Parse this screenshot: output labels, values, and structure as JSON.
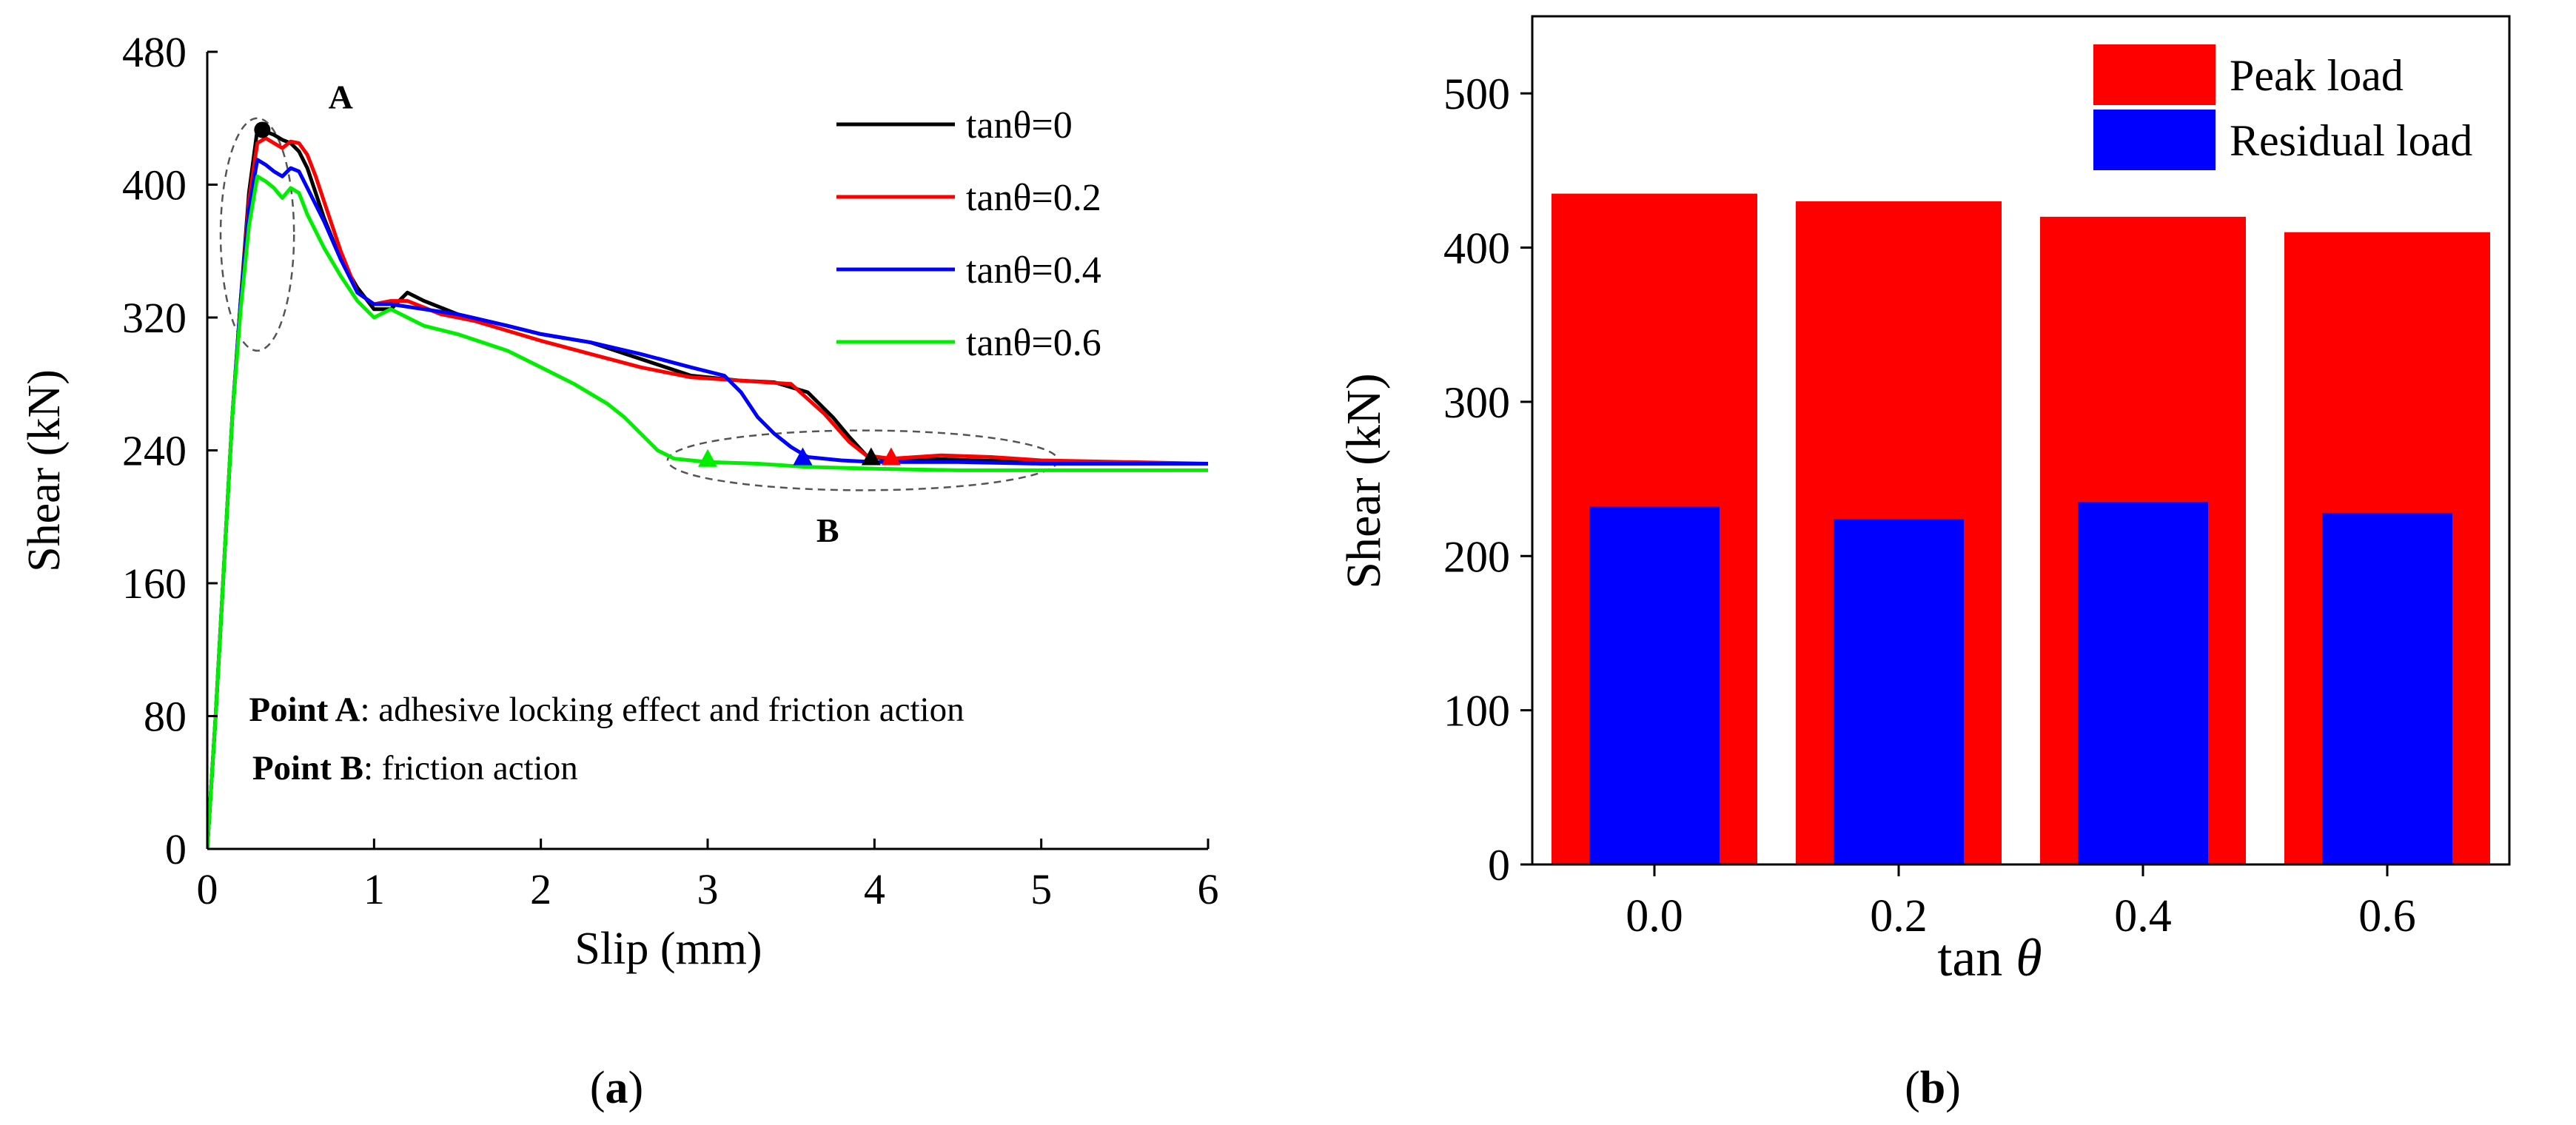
{
  "chart_data": [
    {
      "panel": "(a)",
      "panel_letter": "a",
      "type": "line",
      "xlabel": "Slip (mm)",
      "ylabel": "Shear (kN)",
      "xlim": [
        0,
        6
      ],
      "ylim": [
        0,
        480
      ],
      "xticks": [
        "0",
        "1",
        "2",
        "3",
        "4",
        "5",
        "6"
      ],
      "yticks": [
        "0",
        "80",
        "160",
        "240",
        "320",
        "400",
        "480"
      ],
      "legend_position": "top-right",
      "series": [
        {
          "name": "tanθ=0",
          "color": "#000000",
          "x": [
            0,
            0.05,
            0.1,
            0.15,
            0.2,
            0.25,
            0.3,
            0.35,
            0.4,
            0.45,
            0.5,
            0.55,
            0.6,
            0.65,
            0.7,
            0.8,
            0.9,
            1.0,
            1.1,
            1.2,
            1.3,
            1.5,
            1.8,
            2.0,
            2.3,
            2.6,
            2.9,
            3.2,
            3.4,
            3.6,
            3.75,
            3.85,
            3.95,
            4.05,
            4.3,
            4.6,
            5.0,
            5.5,
            6.0
          ],
          "y": [
            0,
            80,
            170,
            260,
            330,
            395,
            433,
            432,
            430,
            427,
            425,
            420,
            410,
            395,
            380,
            355,
            338,
            325,
            325,
            335,
            330,
            322,
            315,
            310,
            305,
            295,
            285,
            282,
            281,
            275,
            260,
            248,
            237,
            235,
            235,
            234,
            233,
            232,
            232
          ]
        },
        {
          "name": "tanθ=0.2",
          "color": "#ff0000",
          "x": [
            0,
            0.05,
            0.1,
            0.15,
            0.2,
            0.25,
            0.3,
            0.35,
            0.4,
            0.45,
            0.5,
            0.55,
            0.6,
            0.65,
            0.7,
            0.8,
            0.9,
            1.0,
            1.1,
            1.2,
            1.4,
            1.6,
            1.8,
            2.0,
            2.3,
            2.6,
            2.9,
            3.2,
            3.5,
            3.7,
            3.85,
            3.95,
            4.1,
            4.4,
            4.7,
            5.0,
            5.5,
            6.0
          ],
          "y": [
            0,
            80,
            170,
            260,
            330,
            390,
            425,
            428,
            425,
            422,
            426,
            425,
            418,
            405,
            390,
            360,
            335,
            328,
            330,
            330,
            322,
            318,
            312,
            306,
            298,
            290,
            284,
            282,
            280,
            262,
            245,
            237,
            235,
            237,
            236,
            234,
            233,
            232
          ]
        },
        {
          "name": "tanθ=0.4",
          "color": "#0000ff",
          "x": [
            0,
            0.05,
            0.1,
            0.15,
            0.2,
            0.25,
            0.3,
            0.35,
            0.4,
            0.45,
            0.5,
            0.55,
            0.6,
            0.7,
            0.8,
            0.9,
            1.0,
            1.1,
            1.3,
            1.5,
            1.8,
            2.0,
            2.3,
            2.6,
            2.9,
            3.1,
            3.2,
            3.3,
            3.4,
            3.5,
            3.6,
            3.8,
            4.0,
            4.5,
            5.0,
            5.5,
            6.0
          ],
          "y": [
            0,
            80,
            170,
            260,
            330,
            385,
            415,
            412,
            408,
            405,
            410,
            408,
            398,
            378,
            355,
            335,
            328,
            328,
            325,
            322,
            315,
            310,
            305,
            298,
            290,
            285,
            275,
            260,
            250,
            242,
            236,
            234,
            233,
            233,
            232,
            232,
            232
          ]
        },
        {
          "name": "tanθ=0.6",
          "color": "#00ee00",
          "x": [
            0,
            0.05,
            0.1,
            0.15,
            0.2,
            0.25,
            0.3,
            0.35,
            0.4,
            0.45,
            0.5,
            0.55,
            0.6,
            0.7,
            0.8,
            0.9,
            1.0,
            1.1,
            1.3,
            1.5,
            1.8,
            2.0,
            2.2,
            2.4,
            2.5,
            2.6,
            2.7,
            2.8,
            2.9,
            3.0,
            3.3,
            3.6,
            4.0,
            4.5,
            5.0,
            5.5,
            6.0
          ],
          "y": [
            0,
            80,
            170,
            260,
            325,
            375,
            405,
            402,
            398,
            392,
            398,
            395,
            382,
            362,
            345,
            330,
            320,
            325,
            315,
            310,
            300,
            290,
            280,
            268,
            260,
            250,
            240,
            235,
            234,
            233,
            232,
            230,
            229,
            228,
            228,
            228,
            228
          ]
        }
      ],
      "peak_markers": [
        {
          "series": "tanθ=0",
          "x": 0.33,
          "y": 433,
          "shape": "circle"
        }
      ],
      "residual_markers": [
        {
          "series": "tanθ=0",
          "x": 3.98,
          "y": 236,
          "shape": "triangle"
        },
        {
          "series": "tanθ=0.2",
          "x": 4.1,
          "y": 236,
          "shape": "triangle"
        },
        {
          "series": "tanθ=0.4",
          "x": 3.57,
          "y": 236,
          "shape": "triangle"
        },
        {
          "series": "tanθ=0.6",
          "x": 3.0,
          "y": 235,
          "shape": "triangle"
        }
      ],
      "ellipses": [
        {
          "label": "A",
          "cx": 0.3,
          "cy": 370,
          "rx": 0.22,
          "ry": 70
        },
        {
          "label": "B",
          "cx": 3.93,
          "cy": 234,
          "rx": 1.17,
          "ry": 18
        }
      ],
      "annotation_labels": [
        {
          "text": "A",
          "x": 0.8,
          "y": 453
        },
        {
          "text": "B",
          "x": 3.72,
          "y": 192
        }
      ],
      "notes": [
        {
          "bold": "Point A",
          "rest": ": adhesive locking effect and friction action",
          "x": 0.25,
          "y": 77
        },
        {
          "bold": "Point B",
          "rest": ": friction action",
          "x": 0.27,
          "y": 42
        }
      ]
    },
    {
      "panel": "(b)",
      "panel_letter": "b",
      "type": "bar",
      "xlabel_text": "tan ",
      "xlabel_symbol": "θ",
      "ylabel": "Shear (kN)",
      "categories": [
        "0.0",
        "0.2",
        "0.4",
        "0.6"
      ],
      "ylim": [
        0,
        550
      ],
      "yticks": [
        "0",
        "100",
        "200",
        "300",
        "400",
        "500"
      ],
      "legend_position": "top-right",
      "series": [
        {
          "name": "Peak load",
          "color": "#ff0000",
          "values": [
            435,
            430,
            420,
            410
          ]
        },
        {
          "name": "Residual load",
          "color": "#0000ff",
          "values": [
            232,
            224,
            235,
            228
          ]
        }
      ]
    }
  ]
}
